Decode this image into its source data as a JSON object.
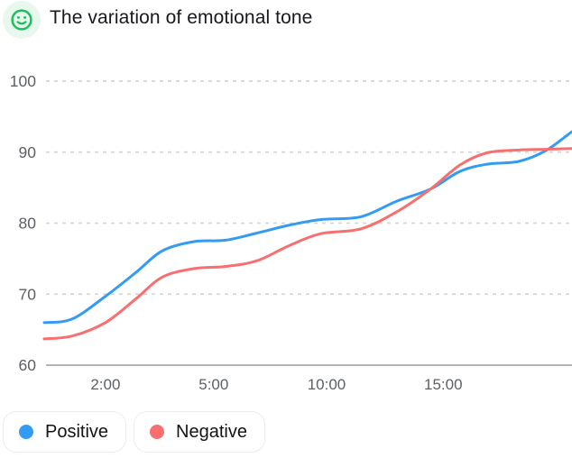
{
  "header": {
    "title": "The variation of emotional tone",
    "icon": "smiley-face-icon"
  },
  "legend": {
    "items": [
      {
        "label": "Positive",
        "color": "#339cf2"
      },
      {
        "label": "Negative",
        "color": "#f96f6f"
      }
    ]
  },
  "colors": {
    "positive_line": "#339cf2",
    "negative_line": "#f96f6f",
    "gridline": "#d6d6d6",
    "axis_line": "#b4b4b8",
    "tick_text": "#5d6065",
    "icon_green": "#1fbf5e",
    "icon_bg": "#e8f8ee"
  },
  "chart_data": {
    "type": "line",
    "title": "The variation of emotional tone",
    "xlabel": "",
    "ylabel": "",
    "grid": "dashed horizontal",
    "legend_position": "bottom-left",
    "y_axis": {
      "min": 60,
      "max": 100,
      "ticks": [
        100,
        90,
        80,
        70,
        60
      ]
    },
    "x_axis": {
      "ticks": [
        {
          "label": "2:00",
          "pos": 0.116
        },
        {
          "label": "5:00",
          "pos": 0.321
        },
        {
          "label": "10:00",
          "pos": 0.535
        },
        {
          "label": "15:00",
          "pos": 0.756
        }
      ]
    },
    "series": [
      {
        "name": "Positive",
        "color": "#339cf2",
        "points": [
          [
            0.0,
            66.0
          ],
          [
            0.053,
            66.5
          ],
          [
            0.116,
            69.7
          ],
          [
            0.173,
            73.0
          ],
          [
            0.224,
            76.1
          ],
          [
            0.284,
            77.4
          ],
          [
            0.344,
            77.6
          ],
          [
            0.403,
            78.6
          ],
          [
            0.463,
            79.7
          ],
          [
            0.523,
            80.5
          ],
          [
            0.6,
            80.9
          ],
          [
            0.668,
            83.1
          ],
          [
            0.732,
            84.8
          ],
          [
            0.788,
            87.3
          ],
          [
            0.839,
            88.3
          ],
          [
            0.899,
            88.7
          ],
          [
            0.95,
            90.2
          ],
          [
            1.0,
            92.9
          ]
        ]
      },
      {
        "name": "Negative",
        "color": "#f96f6f",
        "points": [
          [
            0.0,
            63.7
          ],
          [
            0.053,
            64.1
          ],
          [
            0.116,
            66.0
          ],
          [
            0.173,
            69.3
          ],
          [
            0.224,
            72.4
          ],
          [
            0.284,
            73.6
          ],
          [
            0.344,
            73.9
          ],
          [
            0.403,
            74.7
          ],
          [
            0.463,
            76.8
          ],
          [
            0.523,
            78.5
          ],
          [
            0.6,
            79.2
          ],
          [
            0.668,
            81.6
          ],
          [
            0.732,
            84.8
          ],
          [
            0.788,
            88.2
          ],
          [
            0.839,
            89.9
          ],
          [
            0.899,
            90.3
          ],
          [
            0.95,
            90.4
          ],
          [
            1.0,
            90.5
          ]
        ]
      }
    ]
  }
}
